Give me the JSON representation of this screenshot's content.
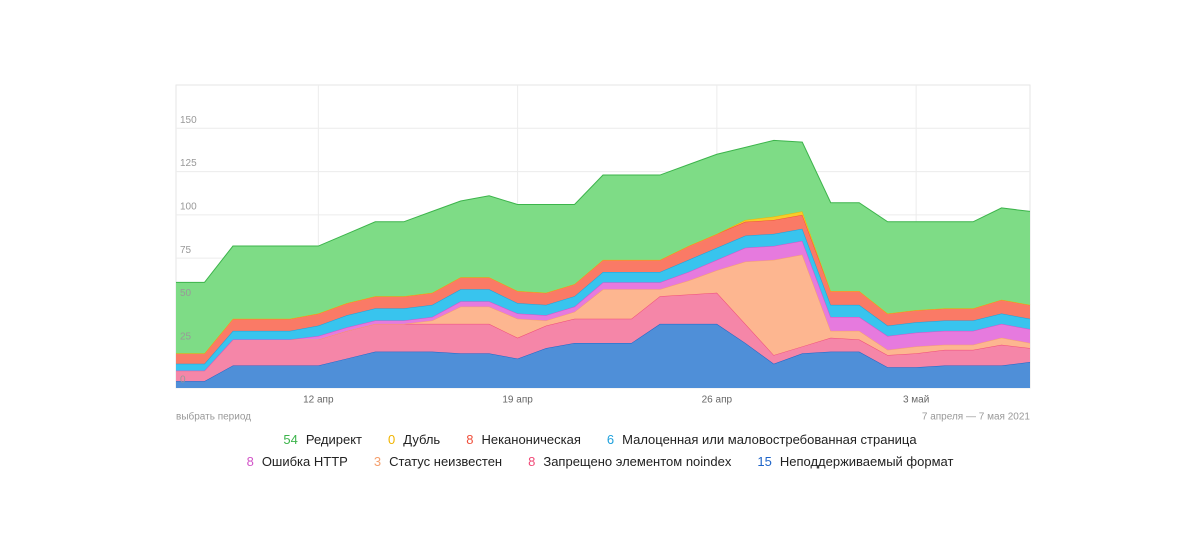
{
  "chart_data": {
    "type": "area",
    "stacked": true,
    "grid": true,
    "categories": [
      null,
      null,
      null,
      null,
      null,
      "12 апр",
      null,
      null,
      null,
      null,
      null,
      null,
      "19 апр",
      null,
      null,
      null,
      null,
      null,
      null,
      "26 апр",
      null,
      null,
      null,
      null,
      null,
      null,
      "3 май",
      null,
      null,
      null,
      null
    ],
    "ylim": [
      0,
      175
    ],
    "yticks": [
      0,
      25,
      50,
      75,
      100,
      125,
      150
    ],
    "period_link": "выбрать период",
    "date_range": "7 апреля — 7 мая 2021",
    "series": [
      {
        "name": "Неподдерживаемый формат",
        "color": "#1e64c8",
        "fill": "#4f8fd8",
        "values": [
          4,
          4,
          13,
          13,
          13,
          13,
          17,
          21,
          21,
          21,
          20,
          20,
          17,
          23,
          26,
          26,
          26,
          37,
          37,
          37,
          26,
          14,
          20,
          21,
          21,
          12,
          12,
          13,
          13,
          13,
          15
        ]
      },
      {
        "name": "Запрещено элементом noindex",
        "color": "#f04b78",
        "fill": "#f586a8",
        "values": [
          6,
          6,
          15,
          15,
          15,
          15,
          16,
          16,
          16,
          16,
          17,
          17,
          12,
          13,
          14,
          14,
          14,
          16,
          17,
          18,
          11,
          5,
          4,
          8,
          7,
          7,
          8,
          9,
          9,
          12,
          8
        ]
      },
      {
        "name": "Статус неизвестен",
        "color": "#f5a06e",
        "fill": "#fdb690",
        "values": [
          0,
          0,
          0,
          0,
          0,
          0,
          0,
          0,
          0,
          2,
          10,
          10,
          11,
          3,
          4,
          17,
          17,
          4,
          8,
          13,
          36,
          55,
          53,
          4,
          5,
          3,
          4,
          3,
          3,
          4,
          3
        ]
      },
      {
        "name": "Ошибка HTTP",
        "color": "#d255c8",
        "fill": "#e67ade",
        "values": [
          0,
          0,
          0,
          0,
          0,
          2,
          2,
          2,
          2,
          2,
          3,
          3,
          3,
          3,
          3,
          4,
          4,
          4,
          5,
          6,
          8,
          8,
          8,
          8,
          8,
          8,
          8,
          8,
          8,
          8,
          8
        ]
      },
      {
        "name": "Малоценная или маловостребованная страница",
        "color": "#1ea0dc",
        "fill": "#38c4ee",
        "values": [
          4,
          4,
          5,
          5,
          5,
          6,
          7,
          7,
          7,
          7,
          7,
          7,
          6,
          6,
          6,
          6,
          6,
          6,
          7,
          7,
          7,
          7,
          7,
          7,
          7,
          6,
          6,
          6,
          6,
          6,
          6
        ]
      },
      {
        "name": "Неканоническая",
        "color": "#f0503c",
        "fill": "#fa7a66",
        "values": [
          6,
          6,
          7,
          7,
          7,
          7,
          7,
          7,
          7,
          7,
          7,
          7,
          7,
          7,
          7,
          7,
          7,
          7,
          8,
          8,
          8,
          8,
          8,
          8,
          8,
          7,
          7,
          7,
          7,
          8,
          8
        ]
      },
      {
        "name": "Дубль",
        "color": "#f0b400",
        "fill": "#f7cc2a",
        "values": [
          0,
          0,
          0,
          0,
          0,
          0,
          0,
          0,
          0,
          0,
          0,
          0,
          0,
          0,
          0,
          0,
          0,
          0,
          0,
          0,
          1,
          2,
          2,
          0,
          0,
          0,
          0,
          0,
          0,
          0,
          0
        ]
      },
      {
        "name": "Редирект",
        "color": "#3cb44b",
        "fill": "#7edc86",
        "values": [
          41,
          41,
          42,
          42,
          42,
          39,
          40,
          43,
          43,
          47,
          44,
          47,
          50,
          51,
          46,
          49,
          49,
          49,
          47,
          46,
          42,
          44,
          40,
          51,
          51,
          53,
          51,
          50,
          50,
          53,
          54
        ]
      }
    ]
  }
}
